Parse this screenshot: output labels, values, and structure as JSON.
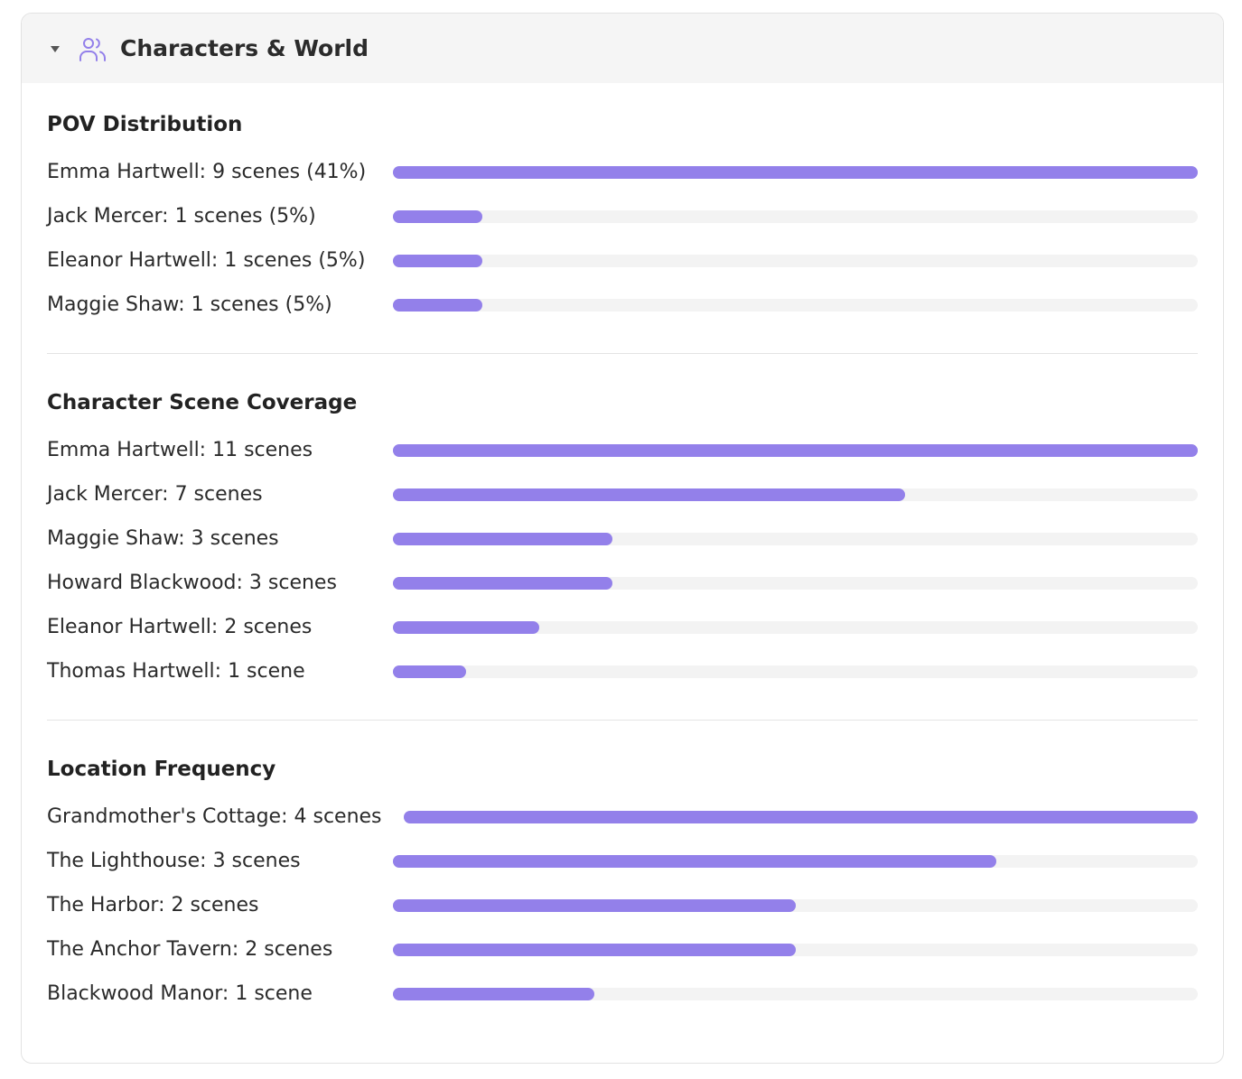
{
  "header": {
    "title": "Characters & World"
  },
  "sections": [
    {
      "title": "POV Distribution",
      "items": [
        {
          "label": "Emma Hartwell: 9 scenes (41%)",
          "scenes": 9
        },
        {
          "label": "Jack Mercer: 1 scenes (5%)",
          "scenes": 1
        },
        {
          "label": "Eleanor Hartwell: 1 scenes (5%)",
          "scenes": 1
        },
        {
          "label": "Maggie Shaw: 1 scenes (5%)",
          "scenes": 1
        }
      ]
    },
    {
      "title": "Character Scene Coverage",
      "items": [
        {
          "label": "Emma Hartwell: 11 scenes",
          "scenes": 11
        },
        {
          "label": "Jack Mercer: 7 scenes",
          "scenes": 7
        },
        {
          "label": "Maggie Shaw: 3 scenes",
          "scenes": 3
        },
        {
          "label": "Howard Blackwood: 3 scenes",
          "scenes": 3
        },
        {
          "label": "Eleanor Hartwell: 2 scenes",
          "scenes": 2
        },
        {
          "label": "Thomas Hartwell: 1 scene",
          "scenes": 1
        }
      ]
    },
    {
      "title": "Location Frequency",
      "items": [
        {
          "label": "Grandmother's Cottage: 4 scenes",
          "scenes": 4
        },
        {
          "label": "The Lighthouse: 3 scenes",
          "scenes": 3
        },
        {
          "label": "The Harbor: 2 scenes",
          "scenes": 2
        },
        {
          "label": "The Anchor Tavern: 2 scenes",
          "scenes": 2
        },
        {
          "label": "Blackwood Manor: 1 scene",
          "scenes": 1
        }
      ]
    }
  ]
}
